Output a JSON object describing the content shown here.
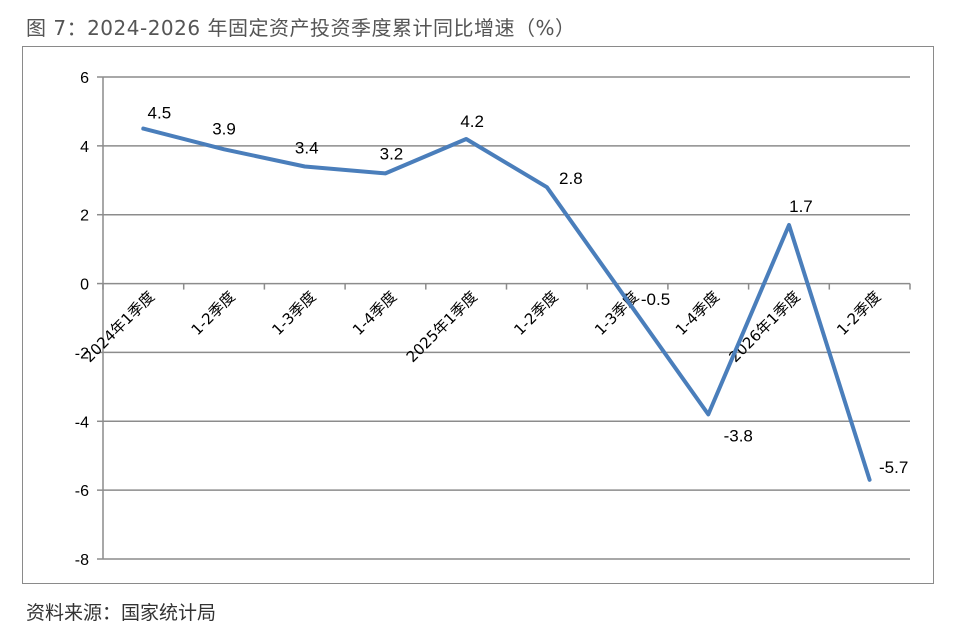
{
  "figure": {
    "title": "图 7：2024-2026 年固定资产投资季度累计同比增速（%）",
    "source": "资料来源：国家统计局"
  },
  "chart_data": {
    "type": "line",
    "categories": [
      "2024年1季度",
      "1-2季度",
      "1-3季度",
      "1-4季度",
      "2025年1季度",
      "1-2季度",
      "1-3季度",
      "1-4季度",
      "2026年1季度",
      "1-2季度"
    ],
    "series": [
      {
        "values": [
          4.5,
          3.9,
          3.4,
          3.2,
          4.2,
          2.8,
          -0.5,
          -3.8,
          1.7,
          -5.7
        ]
      }
    ],
    "data_labels": [
      "4.5",
      "3.9",
      "3.4",
      "3.2",
      "4.2",
      "2.8",
      "-0.5",
      "-3.8",
      "1.7",
      "-5.7"
    ],
    "y_ticks": [
      6,
      4,
      2,
      0,
      -2,
      -4,
      -6,
      -8
    ],
    "ylim": [
      -8,
      6
    ],
    "grid": true,
    "line_color": "#4a7ebb"
  }
}
